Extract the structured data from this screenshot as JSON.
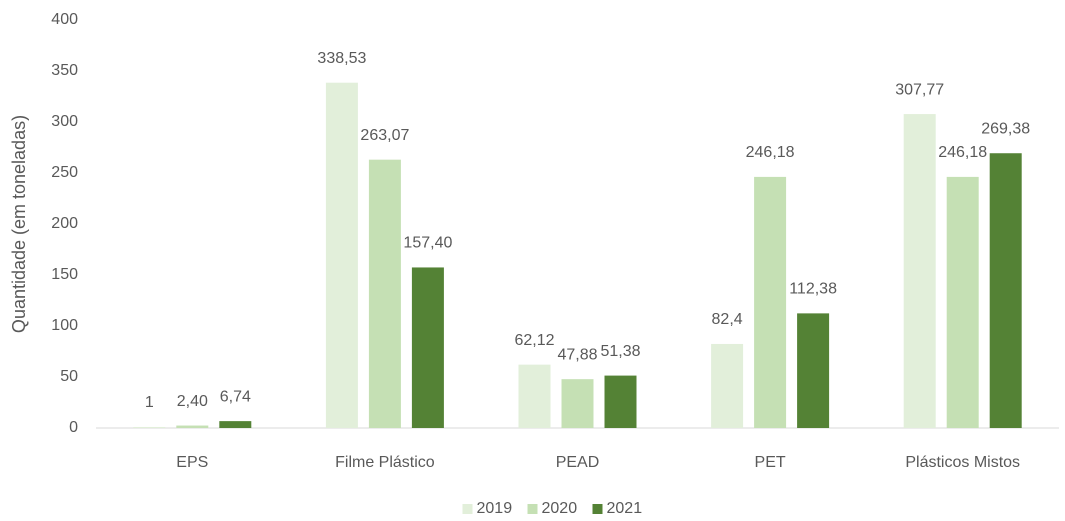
{
  "chart_data": {
    "type": "bar",
    "y_label": "Quantidade (em toneladas)",
    "categories": [
      "EPS",
      "Filme Plástico",
      "PEAD",
      "PET",
      "Plásticos Mistos"
    ],
    "series": [
      {
        "name": "2019",
        "color": "#e2efda",
        "values": [
          1,
          338.53,
          62.12,
          82.4,
          307.77
        ],
        "value_labels": [
          "1",
          "338,53",
          "62,12",
          "82,4",
          "307,77"
        ]
      },
      {
        "name": "2020",
        "color": "#c5e0b4",
        "values": [
          2.4,
          263.07,
          47.88,
          246.18,
          246.18
        ],
        "value_labels": [
          "2,40",
          "263,07",
          "47,88",
          "246,18",
          "246,18"
        ]
      },
      {
        "name": "2021",
        "color": "#548235",
        "values": [
          6.74,
          157.4,
          51.38,
          112.38,
          269.38
        ],
        "value_labels": [
          "6,74",
          "157,40",
          "51,38",
          "112,38",
          "269,38"
        ]
      }
    ],
    "ylim": [
      0,
      400
    ],
    "yticks": [
      0,
      50,
      100,
      150,
      200,
      250,
      300,
      350,
      400
    ],
    "grid": false,
    "legend": "bottom"
  }
}
